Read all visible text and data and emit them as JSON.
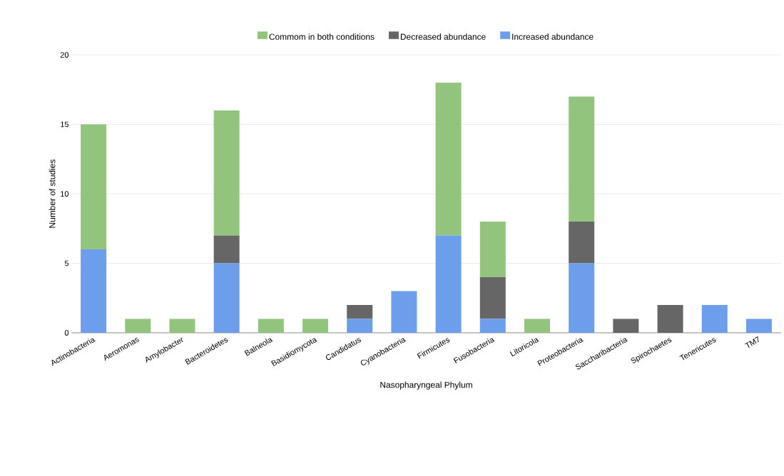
{
  "chart_data": {
    "type": "bar",
    "stacked": true,
    "xlabel": "Nasopharyngeal Phylum",
    "ylabel": "Number of studies",
    "categories": [
      "Actinobacteria",
      "Aeromonas",
      "Amylobacter",
      "Bacteroidetes",
      "Balneola",
      "Basidiomycota",
      "Candidatus",
      "Cyanobacteria",
      "Firmicutes",
      "Fusobacteria",
      "Litoricola",
      "Proteobacteria",
      "Saccharibacteria",
      "Spirochaetes",
      "Tenericutes",
      "TM7"
    ],
    "series": [
      {
        "name": "Increased abundance",
        "color": "#6d9eeb",
        "values": [
          6,
          0,
          0,
          5,
          0,
          0,
          1,
          3,
          7,
          1,
          0,
          5,
          0,
          0,
          2,
          1
        ]
      },
      {
        "name": "Decreased abundance",
        "color": "#666666",
        "values": [
          0,
          0,
          0,
          2,
          0,
          0,
          1,
          0,
          0,
          3,
          0,
          3,
          1,
          2,
          0,
          0
        ]
      },
      {
        "name": "Commom in both conditions",
        "color": "#93c47d",
        "values": [
          9,
          1,
          1,
          9,
          1,
          1,
          0,
          0,
          11,
          4,
          1,
          9,
          0,
          0,
          0,
          0
        ]
      }
    ],
    "ylim": [
      0,
      20
    ],
    "yticks": [
      0,
      5,
      10,
      15,
      20
    ],
    "grid": "y",
    "legend": "top"
  }
}
